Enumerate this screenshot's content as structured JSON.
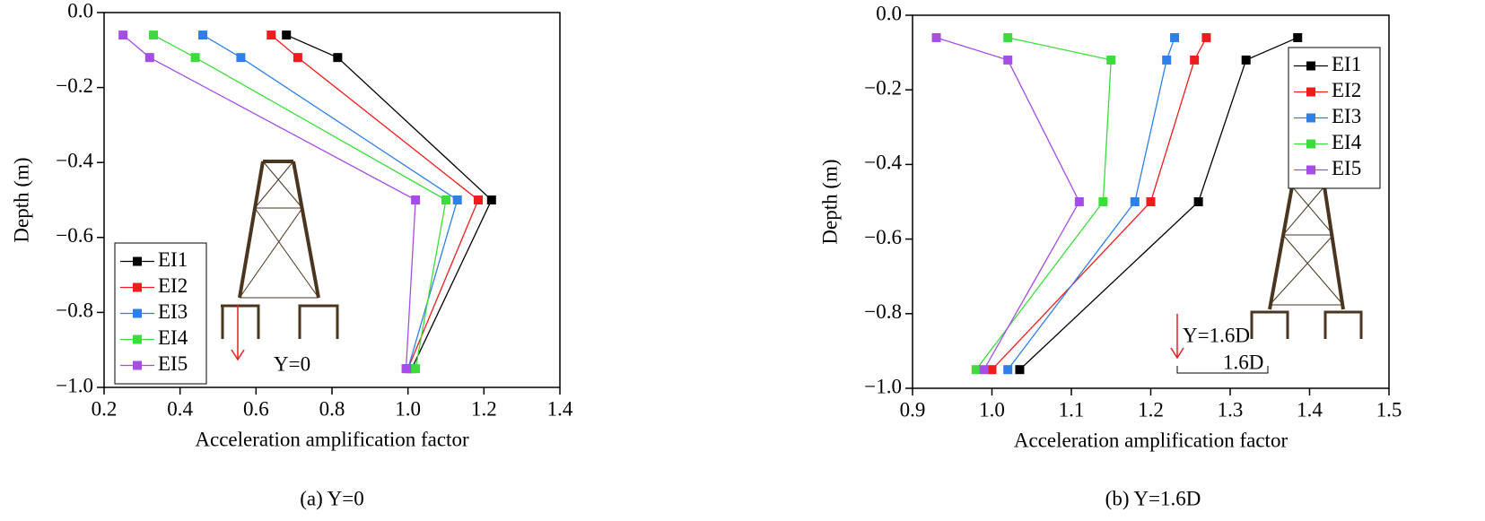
{
  "chart_data": [
    {
      "type": "line",
      "caption": "(a) Y=0",
      "xlabel": "Acceleration amplification factor",
      "ylabel": "Depth (m)",
      "xlim": [
        0.2,
        1.4
      ],
      "ylim": [
        -1.0,
        0.0
      ],
      "xticks": [
        0.2,
        0.4,
        0.6,
        0.8,
        {
          "value": 1.0,
          "label": "1.0"
        },
        1.2,
        1.4
      ],
      "yticks": [
        {
          "value": 0,
          "label": "0.0"
        },
        {
          "value": -0.2,
          "label": "−0.2"
        },
        {
          "value": -0.4,
          "label": "−0.4"
        },
        {
          "value": -0.6,
          "label": "−0.6"
        },
        {
          "value": -0.8,
          "label": "−0.8"
        },
        {
          "value": -1.0,
          "label": "−1.0"
        }
      ],
      "grid": false,
      "legend": "lower left",
      "annotations": [
        "Y=0"
      ],
      "series": [
        {
          "name": "EI1",
          "color": "#000000",
          "x": [
            0.68,
            0.815,
            1.22,
            1.01
          ],
          "values": [
            -0.06,
            -0.12,
            -0.5,
            -0.95
          ]
        },
        {
          "name": "EI2",
          "color": "#ee1c1c",
          "x": [
            0.64,
            0.71,
            1.185,
            1.0
          ],
          "values": [
            -0.06,
            -0.12,
            -0.5,
            -0.95
          ]
        },
        {
          "name": "EI3",
          "color": "#2f7fe8",
          "x": [
            0.46,
            0.56,
            1.13,
            1.0
          ],
          "values": [
            -0.06,
            -0.12,
            -0.5,
            -0.95
          ]
        },
        {
          "name": "EI4",
          "color": "#3ddc3d",
          "x": [
            0.33,
            0.44,
            1.1,
            1.02
          ],
          "values": [
            -0.06,
            -0.12,
            -0.5,
            -0.95
          ]
        },
        {
          "name": "EI5",
          "color": "#a64de8",
          "x": [
            0.25,
            0.32,
            1.02,
            0.995
          ],
          "values": [
            -0.06,
            -0.12,
            -0.5,
            -0.95
          ]
        }
      ]
    },
    {
      "type": "line",
      "caption": "(b) Y=1.6D",
      "xlabel": "Acceleration amplification factor",
      "ylabel": "Depth (m)",
      "xlim": [
        0.9,
        1.5
      ],
      "ylim": [
        -1.0,
        0.0
      ],
      "xticks": [
        0.9,
        {
          "value": 1.0,
          "label": "1.0"
        },
        1.1,
        1.2,
        1.3,
        1.4,
        1.5
      ],
      "yticks": [
        {
          "value": 0,
          "label": "0.0"
        },
        {
          "value": -0.2,
          "label": "−0.2"
        },
        {
          "value": -0.4,
          "label": "−0.4"
        },
        {
          "value": -0.6,
          "label": "−0.6"
        },
        {
          "value": -0.8,
          "label": "−0.8"
        },
        {
          "value": -1.0,
          "label": "−1.0"
        }
      ],
      "grid": false,
      "legend": "upper right",
      "annotations": [
        "Y=1.6D",
        "1.6D"
      ],
      "series": [
        {
          "name": "EI1",
          "color": "#000000",
          "x": [
            1.385,
            1.32,
            1.26,
            1.035
          ],
          "values": [
            -0.06,
            -0.12,
            -0.5,
            -0.95
          ]
        },
        {
          "name": "EI2",
          "color": "#ee1c1c",
          "x": [
            1.27,
            1.255,
            1.2,
            1.0
          ],
          "values": [
            -0.06,
            -0.12,
            -0.5,
            -0.95
          ]
        },
        {
          "name": "EI3",
          "color": "#2f7fe8",
          "x": [
            1.23,
            1.22,
            1.18,
            1.02
          ],
          "values": [
            -0.06,
            -0.12,
            -0.5,
            -0.95
          ]
        },
        {
          "name": "EI4",
          "color": "#3ddc3d",
          "x": [
            1.02,
            1.15,
            1.14,
            0.98
          ],
          "values": [
            -0.06,
            -0.12,
            -0.5,
            -0.95
          ]
        },
        {
          "name": "EI5",
          "color": "#a64de8",
          "x": [
            0.93,
            1.02,
            1.11,
            0.99
          ],
          "values": [
            -0.06,
            -0.12,
            -0.5,
            -0.95
          ]
        }
      ]
    }
  ]
}
